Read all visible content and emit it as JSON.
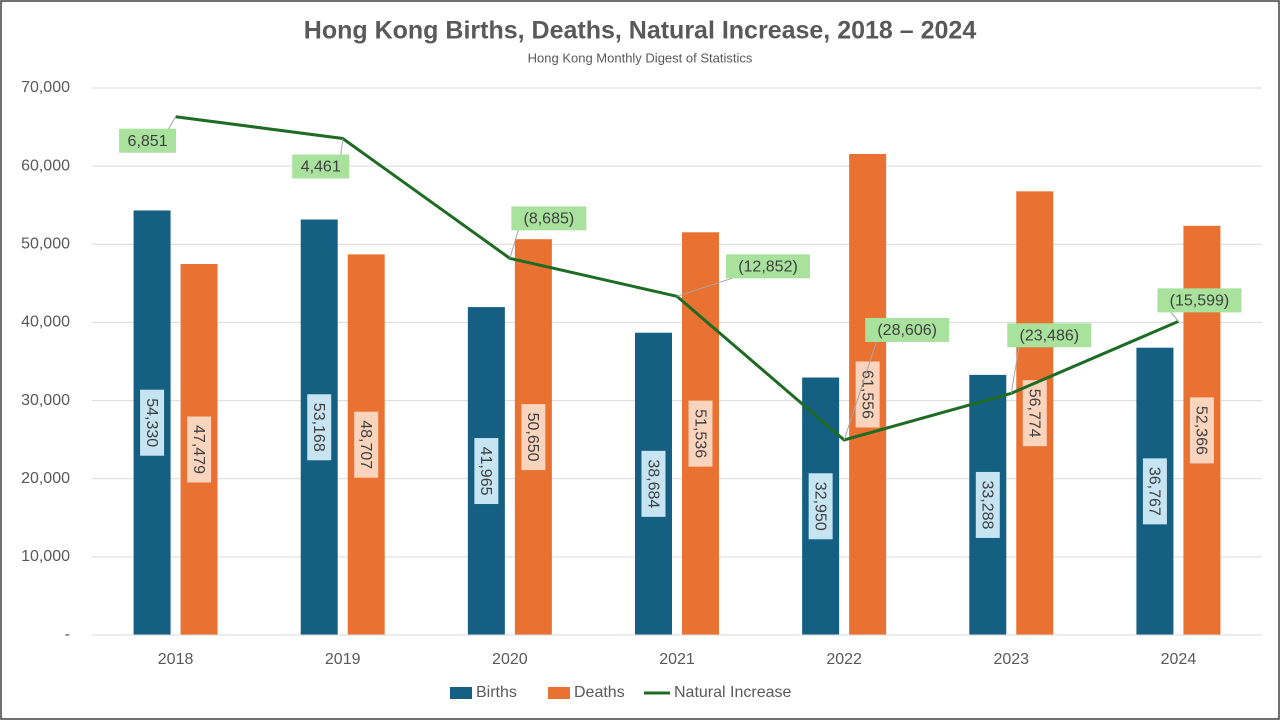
{
  "chart_data": {
    "type": "bar-line",
    "title": "Hong Kong Births, Deaths, Natural Increase, 2018 – 2024",
    "subtitle": "Hong Kong Monthly Digest of Statistics",
    "categories": [
      "2018",
      "2019",
      "2020",
      "2021",
      "2022",
      "2023",
      "2024"
    ],
    "series": [
      {
        "name": "Births",
        "type": "bar",
        "color": "#156082",
        "label_bg": "#c6e4f2",
        "values": [
          54330,
          53168,
          41965,
          38684,
          32950,
          33288,
          36767
        ],
        "value_labels": [
          "54,330",
          "53,168",
          "41,965",
          "38,684",
          "32,950",
          "33,288",
          "36,767"
        ]
      },
      {
        "name": "Deaths",
        "type": "bar",
        "color": "#e97132",
        "label_bg": "#fbd4bd",
        "values": [
          47479,
          48707,
          50650,
          51536,
          61556,
          56774,
          52366
        ],
        "value_labels": [
          "47,479",
          "48,707",
          "50,650",
          "51,536",
          "61,556",
          "56,774",
          "52,366"
        ]
      },
      {
        "name": "Natural Increase",
        "type": "line",
        "axis": "y2",
        "color": "#1e6b24",
        "label_bg": "#a8e29d",
        "values": [
          6851,
          4461,
          -8685,
          -12852,
          -28606,
          -23486,
          -15599
        ],
        "value_labels": [
          "6,851",
          "4,461",
          "(8,685)",
          "(12,852)",
          "(28,606)",
          "(23,486)",
          "(15,599)"
        ]
      }
    ],
    "ylim": [
      0,
      70000
    ],
    "yticks": [
      {
        "value": 0,
        "label": "-"
      },
      {
        "value": 10000,
        "label": "10,000"
      },
      {
        "value": 20000,
        "label": "20,000"
      },
      {
        "value": 30000,
        "label": "30,000"
      },
      {
        "value": 40000,
        "label": "40,000"
      },
      {
        "value": 50000,
        "label": "50,000"
      },
      {
        "value": 60000,
        "label": "60,000"
      },
      {
        "value": 70000,
        "label": "70,000"
      }
    ],
    "y2lim": [
      -50000,
      10000
    ],
    "grid": true,
    "legend": "bottom"
  }
}
